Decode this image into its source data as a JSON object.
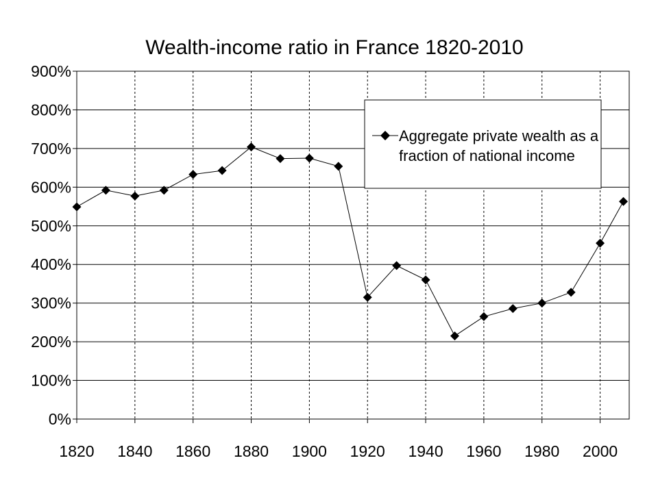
{
  "chart_data": {
    "type": "line",
    "title": "Wealth-income ratio in France 1820-2010",
    "xlabel": "",
    "ylabel": "",
    "x_ticks": [
      "1820",
      "1840",
      "1860",
      "1880",
      "1900",
      "1920",
      "1940",
      "1960",
      "1980",
      "2000"
    ],
    "y_ticks": [
      "0%",
      "100%",
      "200%",
      "300%",
      "400%",
      "500%",
      "600%",
      "700%",
      "800%",
      "900%"
    ],
    "xlim": [
      1820,
      2010
    ],
    "ylim": [
      0,
      900
    ],
    "y_unit": "%",
    "grid": {
      "horizontal": "solid",
      "vertical": "dashed"
    },
    "legend_position": "top-right",
    "series": [
      {
        "name": "Aggregate private wealth as a fraction of national income",
        "color": "#000000",
        "marker": "diamond",
        "x": [
          1820,
          1830,
          1840,
          1850,
          1860,
          1870,
          1880,
          1890,
          1900,
          1910,
          1920,
          1930,
          1940,
          1950,
          1960,
          1970,
          1980,
          1990,
          2000,
          2008
        ],
        "values": [
          549,
          592,
          577,
          592,
          633,
          643,
          704,
          674,
          675,
          654,
          315,
          397,
          360,
          215,
          265,
          286,
          300,
          328,
          455,
          563
        ]
      }
    ]
  },
  "legend": {
    "line1": "Aggregate private wealth as a",
    "line2": "fraction of national income"
  }
}
